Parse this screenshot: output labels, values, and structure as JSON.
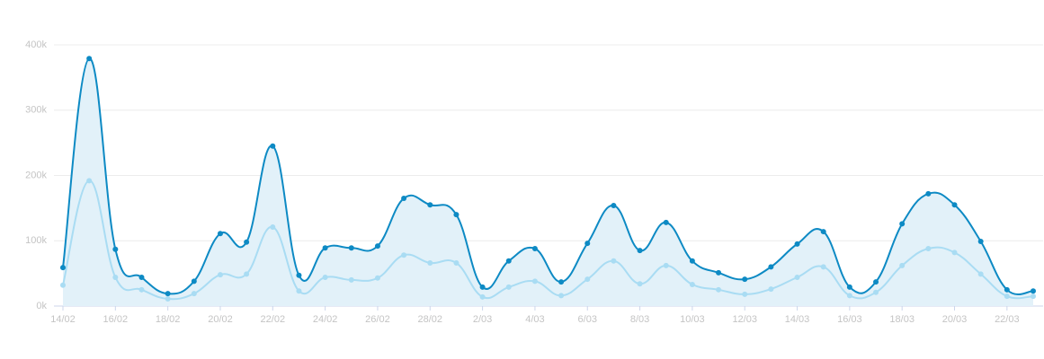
{
  "chart_data": {
    "type": "area",
    "categories": [
      "14/02",
      null,
      "16/02",
      null,
      "18/02",
      null,
      "20/02",
      null,
      "22/02",
      null,
      "24/02",
      null,
      "26/02",
      null,
      "28/02",
      null,
      "2/03",
      null,
      "4/03",
      null,
      "6/03",
      null,
      "8/03",
      null,
      "10/03",
      null,
      "12/03",
      null,
      "14/03",
      null,
      "16/03",
      null,
      "18/03",
      null,
      "20/03",
      null,
      "22/03",
      null
    ],
    "series": [
      {
        "color": "#0d8ac4",
        "fill": "#e2f1f9",
        "values": [
          59000,
          379000,
          87000,
          44000,
          19000,
          38000,
          111000,
          98000,
          245000,
          47000,
          89000,
          89000,
          92000,
          165000,
          155000,
          140000,
          29000,
          69000,
          88000,
          37000,
          96000,
          154000,
          85000,
          128000,
          69000,
          51000,
          41000,
          60000,
          95000,
          114000,
          29000,
          37000,
          126000,
          172000,
          155000,
          99000,
          25000,
          23000
        ]
      },
      {
        "color": "#a9dcf3",
        "values": [
          32000,
          192000,
          44000,
          25000,
          11000,
          19000,
          48000,
          49000,
          121000,
          23000,
          44000,
          40000,
          43000,
          78000,
          66000,
          66000,
          14000,
          29000,
          38000,
          16000,
          41000,
          69000,
          34000,
          62000,
          33000,
          25000,
          18000,
          26000,
          44000,
          60000,
          16000,
          21000,
          62000,
          88000,
          82000,
          49000,
          15000,
          15000
        ]
      }
    ],
    "ylim": [
      0,
      400000
    ],
    "yticks": [
      {
        "value": 0,
        "label": "0k"
      },
      {
        "value": 100000,
        "label": "100k"
      },
      {
        "value": 200000,
        "label": "200k"
      },
      {
        "value": 300000,
        "label": "300k"
      },
      {
        "value": 400000,
        "label": "400k"
      }
    ],
    "grid": true
  }
}
